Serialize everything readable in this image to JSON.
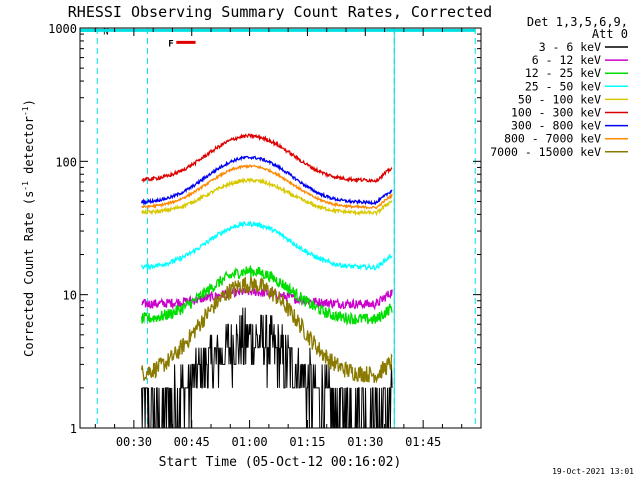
{
  "chart_data": {
    "type": "line",
    "title": "RHESSI Observing Summary Count Rates, Corrected",
    "xlabel": "Start Time (05-Oct-12 00:16:02)",
    "ylabel_main": "Corrected Count Rate (s",
    "ylabel_sup1": "-1",
    "ylabel_mid": " detector",
    "ylabel_sup2": "-1",
    "ylabel_end": ")",
    "y_scale": "log",
    "ylim": [
      1,
      1000
    ],
    "xlim_minutes": [
      16.03,
      120
    ],
    "x_ticks": [
      {
        "label": "00:30",
        "minute": 30
      },
      {
        "label": "00:45",
        "minute": 45
      },
      {
        "label": "01:00",
        "minute": 60
      },
      {
        "label": "01:15",
        "minute": 75
      },
      {
        "label": "01:30",
        "minute": 90
      },
      {
        "label": "01:45",
        "minute": 105
      }
    ],
    "y_ticks": [
      {
        "label": "1",
        "value": 1
      },
      {
        "label": "10",
        "value": 10
      },
      {
        "label": "100",
        "value": 100
      },
      {
        "label": "1000",
        "value": 1000
      }
    ],
    "legend_header": [
      "Det 1,3,5,6,9,",
      "Att 0"
    ],
    "legend_placement": "right",
    "series": [
      {
        "name": "3 - 6 keV",
        "color": "#000000",
        "base": 1.3,
        "peak": 4.5,
        "noise": 0.55
      },
      {
        "name": "6 - 12 keV",
        "color": "#cc00cc",
        "base": 8.5,
        "peak": 10.5,
        "noise": 0.08
      },
      {
        "name": "12 - 25 keV",
        "color": "#00dd00",
        "base": 6.5,
        "peak": 15,
        "noise": 0.1
      },
      {
        "name": "25 - 50 keV",
        "color": "#00ffff",
        "base": 16,
        "peak": 34,
        "noise": 0.04
      },
      {
        "name": "50 - 100 keV",
        "color": "#d8c800",
        "base": 41,
        "peak": 72,
        "noise": 0.03
      },
      {
        "name": "100 - 300 keV",
        "color": "#dd0000",
        "base": 72,
        "peak": 155,
        "noise": 0.03
      },
      {
        "name": "300 - 800 keV",
        "color": "#0000ee",
        "base": 49,
        "peak": 107,
        "noise": 0.025
      },
      {
        "name": "800 - 7000 keV",
        "color": "#ff8800",
        "base": 45,
        "peak": 92,
        "noise": 0.02
      },
      {
        "name": "7000 - 15000 keV",
        "color": "#8a7a00",
        "base": 2.5,
        "peak": 12,
        "noise": 0.15
      }
    ],
    "data_start_minute": 32,
    "data_end_minute": 97,
    "peak_minute": 60,
    "night_intervals": [
      {
        "label": "N",
        "start_minute": 20.5,
        "end_minute": 33.5
      },
      {
        "label": "",
        "start_minute": 97.5,
        "end_minute": 118.5
      }
    ],
    "flare_marker": {
      "label": "F",
      "start_minute": 41,
      "end_minute": 46,
      "value": 780
    },
    "night_color": "#00e0e0",
    "flare_color": "#dd0000",
    "footer_timestamp": "19-Oct-2021 13:01"
  }
}
